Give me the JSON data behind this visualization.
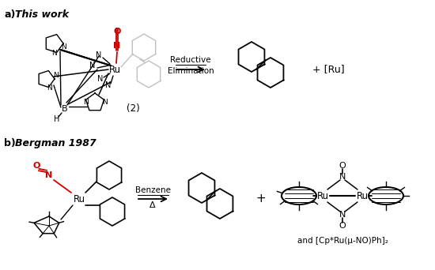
{
  "bg": "#ffffff",
  "blk": "#000000",
  "red": "#cc0000",
  "gry": "#c0c0c0",
  "la": "a)",
  "la2": "This work",
  "lb": "b)",
  "lb2": "Bergman 1987",
  "lbl2": "(2)",
  "re1": "Reductive",
  "re2": "Elimination",
  "pru": "+ [Ru]",
  "benz": "Benzene",
  "delt": "Δ",
  "plus": "+",
  "andlbl": "and [Cp*Ru(μ-NO)Ph]₂"
}
